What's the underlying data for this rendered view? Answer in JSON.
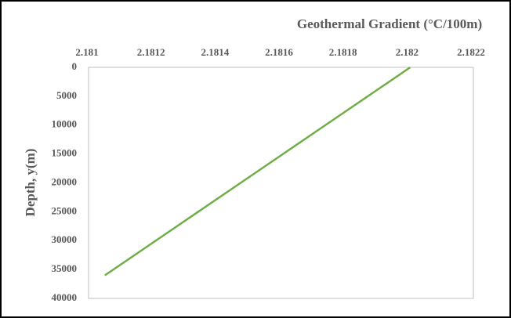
{
  "chart_data": {
    "type": "line",
    "x_label": "Geothermal Gradient (°C/100m)",
    "y_label": "Depth, y(m)",
    "x": [
      2.181056,
      2.181162,
      2.181268,
      2.181374,
      2.18148,
      2.181586,
      2.181692,
      2.181798,
      2.181904,
      2.18201
    ],
    "values": [
      36000,
      32000,
      28000,
      24000,
      20000,
      16000,
      12000,
      8000,
      4000,
      0
    ],
    "color": "#70ad47",
    "xlim": [
      2.181,
      2.1822
    ],
    "xticks": [
      2.181,
      2.1812,
      2.1814,
      2.1816,
      2.1818,
      2.182,
      2.1822
    ],
    "ylim": [
      0,
      40000
    ],
    "yticks": [
      0,
      5000,
      10000,
      15000,
      20000,
      25000,
      30000,
      35000,
      40000
    ],
    "y_reversed": true,
    "x_axis_position": "top"
  }
}
